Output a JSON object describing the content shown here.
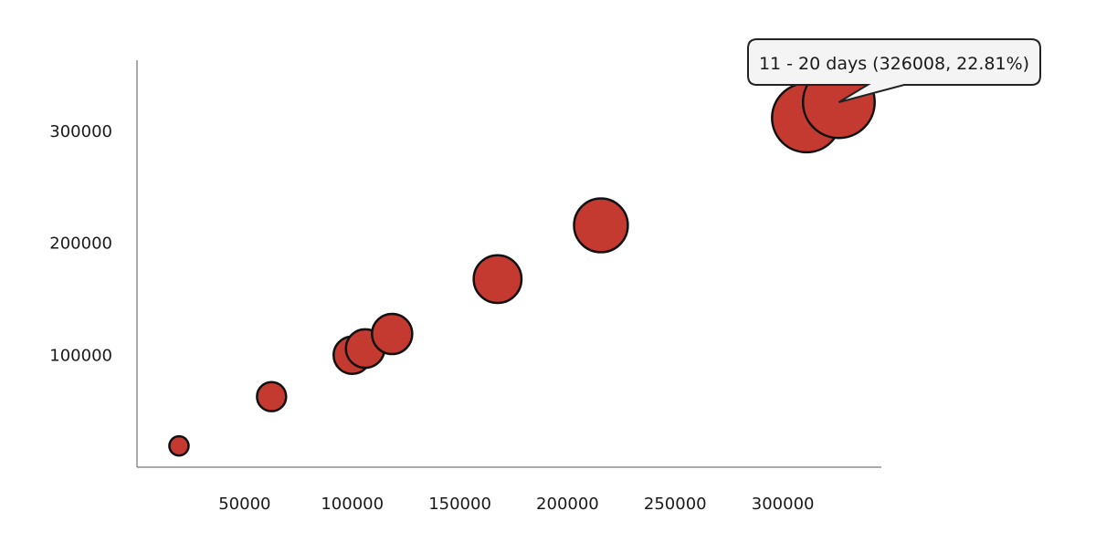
{
  "chart_data": {
    "type": "scatter",
    "xlim": [
      0,
      350000
    ],
    "ylim": [
      0,
      360000
    ],
    "x_ticks": [
      50000,
      100000,
      150000,
      200000,
      250000,
      300000
    ],
    "y_ticks": [
      100000,
      200000,
      300000
    ],
    "points": [
      {
        "x": 19500,
        "y": 19000,
        "pct": 1.2
      },
      {
        "x": 62500,
        "y": 63000,
        "pct": 3.2
      },
      {
        "x": 100000,
        "y": 100000,
        "pct": 5.6
      },
      {
        "x": 106000,
        "y": 106000,
        "pct": 6.0
      },
      {
        "x": 118500,
        "y": 119000,
        "pct": 6.6
      },
      {
        "x": 167500,
        "y": 168000,
        "pct": 9.6
      },
      {
        "x": 215500,
        "y": 216000,
        "pct": 12.4
      },
      {
        "x": 311000,
        "y": 312000,
        "pct": 21.0
      },
      {
        "x": 326008,
        "y": 326008,
        "pct": 22.81
      }
    ],
    "tooltip": {
      "text": "11 - 20 days (326008, 22.81%)",
      "point_index": 8
    },
    "grid": false,
    "colors": {
      "bubble_fill": "#c43a31",
      "bubble_stroke": "#111111"
    }
  }
}
